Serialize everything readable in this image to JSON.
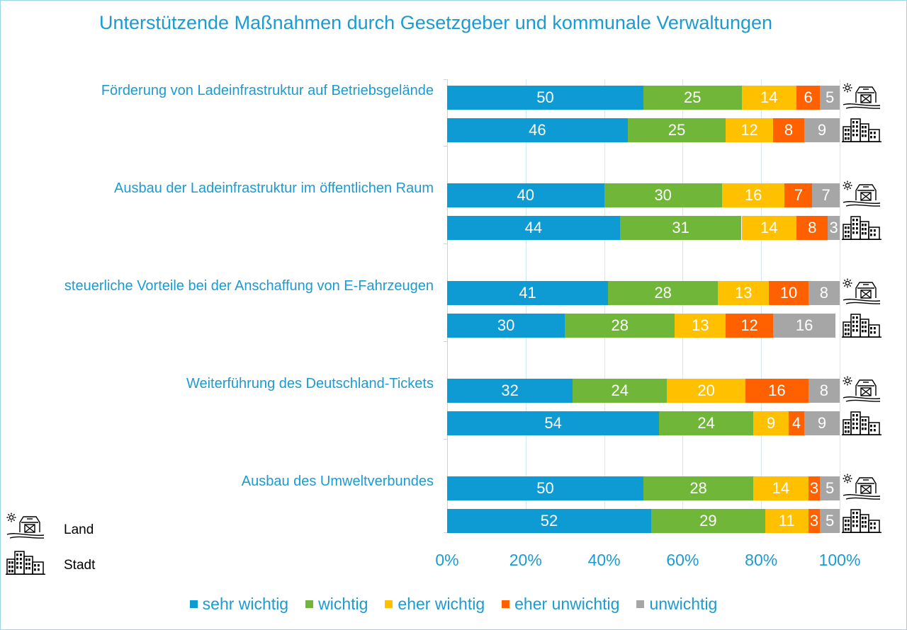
{
  "chart_data": {
    "type": "bar",
    "orientation": "horizontal",
    "stacked": true,
    "title": "Unterstützende Maßnahmen durch Gesetzgeber und kommunale Verwaltungen",
    "xlim": [
      0,
      100
    ],
    "x_tick_labels": [
      "0%",
      "20%",
      "40%",
      "60%",
      "80%",
      "100%"
    ],
    "grid": true,
    "legend_position": "bottom",
    "series": [
      {
        "name": "sehr wichtig",
        "color": "#0e9bd4"
      },
      {
        "name": "wichtig",
        "color": "#70b739"
      },
      {
        "name": "eher wichtig",
        "color": "#ffc000"
      },
      {
        "name": "eher unwichtig",
        "color": "#ff6100"
      },
      {
        "name": "unwichtig",
        "color": "#a6a6a6"
      }
    ],
    "categories": [
      {
        "label": "Förderung von Ladeinfrastruktur auf Betriebsgelände",
        "land": [
          50,
          25,
          14,
          6,
          5
        ],
        "stadt": [
          46,
          25,
          12,
          8,
          9
        ]
      },
      {
        "label": "Ausbau der Ladeinfrastruktur im öffentlichen Raum",
        "land": [
          40,
          30,
          16,
          7,
          7
        ],
        "stadt": [
          44,
          31,
          14,
          8,
          3
        ]
      },
      {
        "label": "steuerliche Vorteile bei der Anschaffung von E-Fahrzeugen",
        "land": [
          41,
          28,
          13,
          10,
          8
        ],
        "stadt": [
          30,
          28,
          13,
          12,
          16
        ]
      },
      {
        "label": "Weiterführung des Deutschland-Tickets",
        "land": [
          32,
          24,
          20,
          16,
          8
        ],
        "stadt": [
          54,
          24,
          9,
          4,
          9
        ]
      },
      {
        "label": "Ausbau des Umweltverbundes",
        "land": [
          50,
          28,
          14,
          3,
          5
        ],
        "stadt": [
          52,
          29,
          11,
          3,
          5
        ]
      }
    ],
    "row_icons": {
      "land": "farm-barn-icon",
      "stadt": "city-buildings-icon"
    },
    "icon_key": [
      {
        "icon": "farm-barn-icon",
        "label": "Land"
      },
      {
        "icon": "city-buildings-icon",
        "label": "Stadt"
      }
    ]
  }
}
